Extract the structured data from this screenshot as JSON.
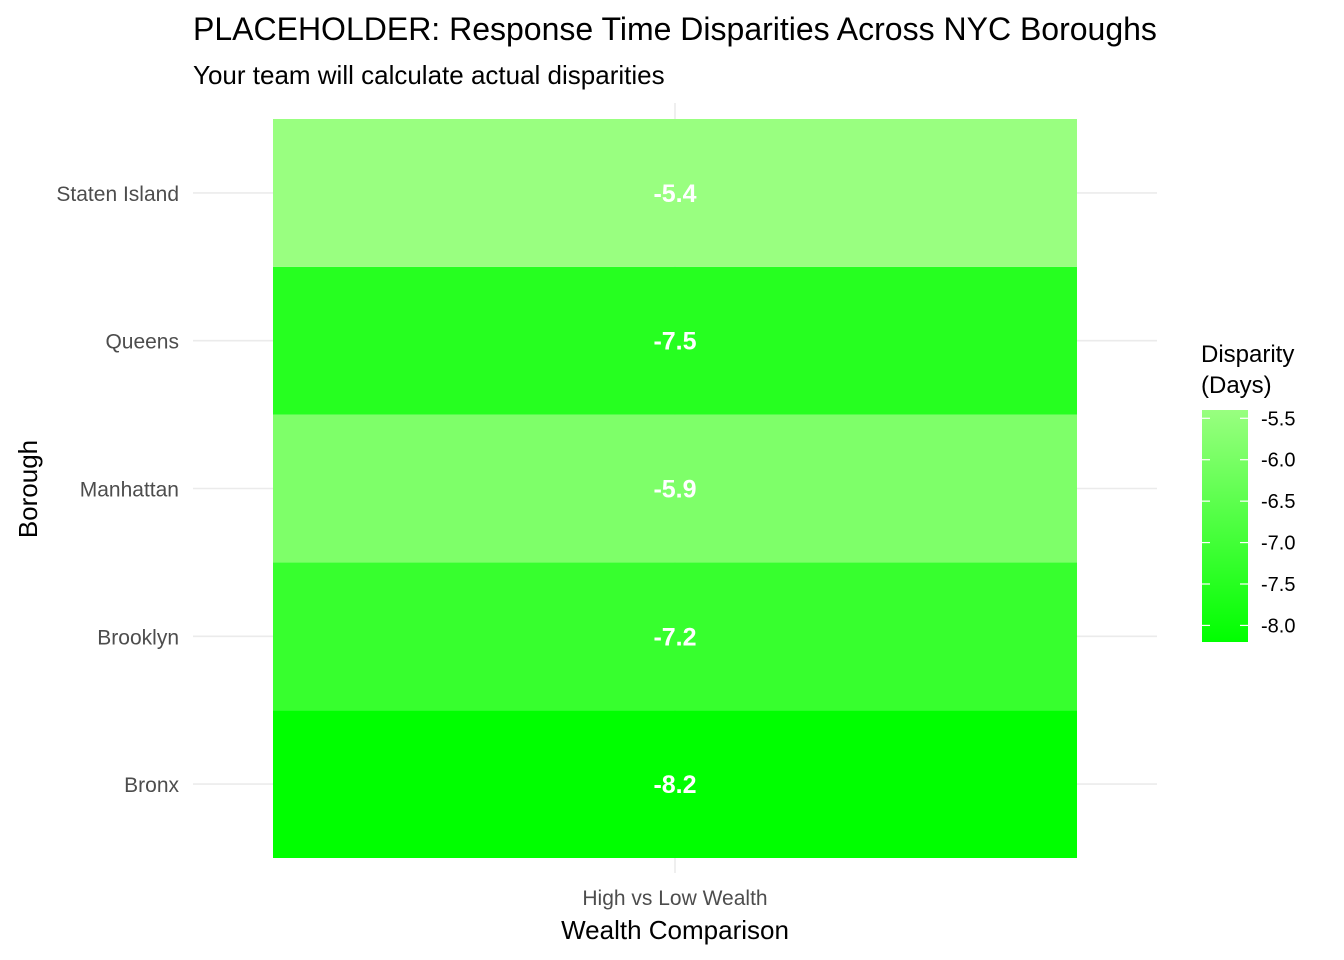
{
  "chart_data": {
    "type": "heatmap",
    "title": "PLACEHOLDER: Response Time Disparities Across NYC Boroughs",
    "subtitle": "Your team will calculate actual disparities",
    "xlabel": "Wealth Comparison",
    "ylabel": "Borough",
    "x_categories": [
      "High vs Low Wealth"
    ],
    "y_categories": [
      "Bronx",
      "Brooklyn",
      "Manhattan",
      "Queens",
      "Staten Island"
    ],
    "values": [
      {
        "x": "High vs Low Wealth",
        "y": "Bronx",
        "value": -8.2,
        "label": "-8.2"
      },
      {
        "x": "High vs Low Wealth",
        "y": "Brooklyn",
        "value": -7.2,
        "label": "-7.2"
      },
      {
        "x": "High vs Low Wealth",
        "y": "Manhattan",
        "value": -5.9,
        "label": "-5.9"
      },
      {
        "x": "High vs Low Wealth",
        "y": "Queens",
        "value": -7.5,
        "label": "-7.5"
      },
      {
        "x": "High vs Low Wealth",
        "y": "Staten Island",
        "value": -5.4,
        "label": "-5.4"
      }
    ],
    "legend": {
      "title_lines": [
        "Disparity",
        "(Days)"
      ],
      "ticks": [
        -5.5,
        -6.0,
        -6.5,
        -7.0,
        -7.5,
        -8.0
      ],
      "tick_labels": [
        "-5.5",
        "-6.0",
        "-6.5",
        "-7.0",
        "-7.5",
        "-8.0"
      ],
      "min": -8.2,
      "max": -5.4,
      "color_low": "#00ff00",
      "color_high": "#99ff80",
      "placement": "right"
    },
    "grid": true
  }
}
